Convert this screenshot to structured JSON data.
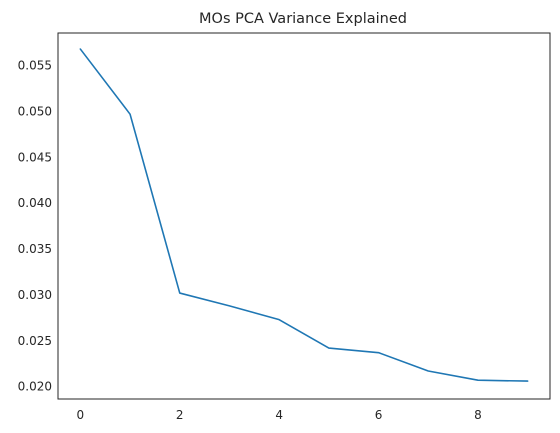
{
  "chart_data": {
    "type": "line",
    "title": "MOs PCA Variance Explained",
    "xlabel": "",
    "ylabel": "",
    "x": [
      0,
      1,
      2,
      3,
      4,
      5,
      6,
      7,
      8,
      9
    ],
    "series": [
      {
        "values": [
          0.0568,
          0.0497,
          0.0302,
          0.0288,
          0.0273,
          0.0242,
          0.0237,
          0.0217,
          0.0207,
          0.0206
        ],
        "color": "#1f77b4"
      }
    ],
    "xlim": [
      -0.45,
      9.45
    ],
    "ylim": [
      0.01865,
      0.05855
    ],
    "x_ticks": [
      0,
      2,
      4,
      6,
      8
    ],
    "y_ticks": [
      0.02,
      0.025,
      0.03,
      0.035,
      0.04,
      0.045,
      0.05,
      0.055
    ],
    "y_tick_labels": [
      "0.020",
      "0.025",
      "0.030",
      "0.035",
      "0.040",
      "0.045",
      "0.050",
      "0.055"
    ],
    "grid": false,
    "legend": "none"
  }
}
